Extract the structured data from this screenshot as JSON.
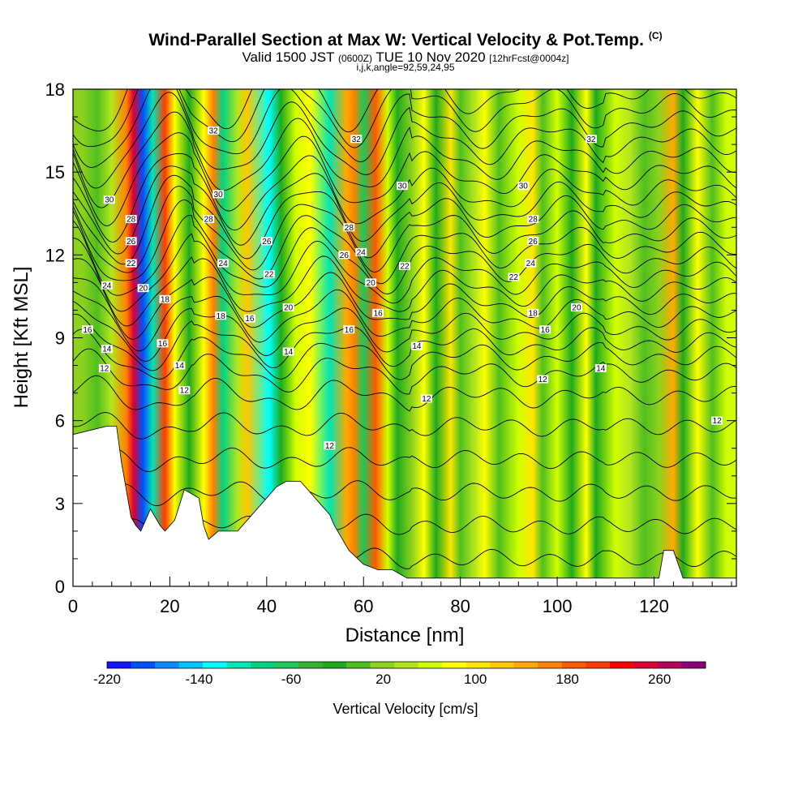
{
  "header": {
    "title": "Wind-Parallel Section at Max W: Vertical Velocity & Pot.Temp.",
    "copyright": "(C)",
    "valid_pre": "Valid 1500 JST",
    "valid_utc": "(0600Z)",
    "valid_mid": "TUE 10 Nov 2020",
    "valid_fcst": "[12hrFcst@0004z]",
    "indices": "i,j,k,angle=92,59,24,95"
  },
  "chart_data": {
    "type": "heatmap",
    "title": "Wind-Parallel Section at Max W: Vertical Velocity & Pot.Temp.",
    "xlabel": "Distance [nm]",
    "ylabel": "Height [Kft MSL]",
    "xlim": [
      0,
      137
    ],
    "ylim": [
      0,
      18
    ],
    "x_ticks": [
      0,
      20,
      40,
      60,
      80,
      100,
      120
    ],
    "y_ticks": [
      0,
      3,
      6,
      9,
      12,
      15,
      18
    ],
    "colorbar": {
      "title": "Vertical Velocity [cm/s]",
      "min": -220,
      "max": 280,
      "step": 20,
      "tick_values": [
        -220,
        -140,
        -60,
        20,
        100,
        180,
        260
      ],
      "tick_labels": [
        "-220",
        "-140",
        "-60",
        "20",
        "100",
        "180",
        "260"
      ],
      "colors": [
        "#1414ff",
        "#0050ff",
        "#0a8cff",
        "#00c3ff",
        "#00ffff",
        "#00e6b4",
        "#00d282",
        "#1ec85a",
        "#32b432",
        "#1eaa1e",
        "#50be1e",
        "#8cd21e",
        "#b4e61e",
        "#d2ff00",
        "#ffff00",
        "#ffe600",
        "#ffc800",
        "#ffaa00",
        "#ff8200",
        "#ff5a00",
        "#ff3c00",
        "#ff0000",
        "#dc0032",
        "#b4005a",
        "#8c0078"
      ]
    },
    "velocity_bands": [
      {
        "x": 2,
        "w": 0
      },
      {
        "x": 5,
        "w": -20
      },
      {
        "x": 8,
        "w": 20
      },
      {
        "x": 11,
        "w": 140
      },
      {
        "x": 12.5,
        "w": 220
      },
      {
        "x": 14.5,
        "w": -200
      },
      {
        "x": 16.5,
        "w": -120
      },
      {
        "x": 19,
        "w": 180
      },
      {
        "x": 21,
        "w": 60
      },
      {
        "x": 24,
        "w": -40
      },
      {
        "x": 27,
        "w": 60
      },
      {
        "x": 29,
        "w": 140
      },
      {
        "x": 31,
        "w": -100
      },
      {
        "x": 34,
        "w": 20
      },
      {
        "x": 36,
        "w": 100
      },
      {
        "x": 40.5,
        "w": -140
      },
      {
        "x": 43,
        "w": -40
      },
      {
        "x": 46,
        "w": 40
      },
      {
        "x": 49,
        "w": 60
      },
      {
        "x": 53,
        "w": -120
      },
      {
        "x": 56.5,
        "w": 120
      },
      {
        "x": 58,
        "w": 140
      },
      {
        "x": 60,
        "w": -80
      },
      {
        "x": 62.5,
        "w": 160
      },
      {
        "x": 65,
        "w": 40
      },
      {
        "x": 67,
        "w": -40
      },
      {
        "x": 70,
        "w": 0
      },
      {
        "x": 72.5,
        "w": 60
      },
      {
        "x": 75,
        "w": -40
      },
      {
        "x": 78,
        "w": 80
      },
      {
        "x": 80,
        "w": -20
      },
      {
        "x": 83,
        "w": 20
      },
      {
        "x": 85,
        "w": 60
      },
      {
        "x": 88,
        "w": -20
      },
      {
        "x": 92,
        "w": 40
      },
      {
        "x": 95,
        "w": 80
      },
      {
        "x": 97,
        "w": -20
      },
      {
        "x": 100,
        "w": 40
      },
      {
        "x": 103,
        "w": -40
      },
      {
        "x": 106,
        "w": 60
      },
      {
        "x": 108,
        "w": -40
      },
      {
        "x": 112,
        "w": 40
      },
      {
        "x": 115,
        "w": 20
      },
      {
        "x": 118,
        "w": -20
      },
      {
        "x": 121,
        "w": 0
      },
      {
        "x": 124,
        "w": 120
      },
      {
        "x": 126,
        "w": -40
      },
      {
        "x": 129,
        "w": 60
      },
      {
        "x": 132,
        "w": -20
      },
      {
        "x": 135,
        "w": 40
      }
    ],
    "terrain": [
      [
        0,
        5.5
      ],
      [
        7,
        5.8
      ],
      [
        9,
        5.8
      ],
      [
        10,
        4.5
      ],
      [
        11,
        3.5
      ],
      [
        12,
        2.5
      ],
      [
        13,
        2.2
      ],
      [
        14,
        2
      ],
      [
        15,
        2.4
      ],
      [
        16,
        2.8
      ],
      [
        17,
        2.5
      ],
      [
        18,
        2.2
      ],
      [
        19,
        2
      ],
      [
        21,
        2.4
      ],
      [
        23,
        3.5
      ],
      [
        26,
        3.2
      ],
      [
        27,
        2.2
      ],
      [
        28,
        1.7
      ],
      [
        30,
        2
      ],
      [
        34,
        2
      ],
      [
        36,
        2.4
      ],
      [
        39,
        3
      ],
      [
        42,
        3.6
      ],
      [
        44,
        3.8
      ],
      [
        47,
        3.8
      ],
      [
        49,
        3.4
      ],
      [
        51,
        3
      ],
      [
        53,
        2.6
      ],
      [
        54,
        2.2
      ],
      [
        57,
        1.3
      ],
      [
        60,
        0.8
      ],
      [
        63,
        0.6
      ],
      [
        66,
        0.6
      ],
      [
        69,
        0.3
      ],
      [
        75,
        0.3
      ],
      [
        85,
        0.3
      ],
      [
        100,
        0.3
      ],
      [
        110,
        0.3
      ],
      [
        121,
        0.3
      ],
      [
        122,
        1.3
      ],
      [
        124,
        1.3
      ],
      [
        126,
        0.3
      ],
      [
        137,
        0.3
      ]
    ],
    "isentropes": [
      {
        "base": 1.0,
        "label": "12"
      },
      {
        "base": 2.2,
        "label": "12"
      },
      {
        "base": 3.4,
        "label": "12"
      },
      {
        "base": 4.6,
        "label": "12"
      },
      {
        "base": 5.8,
        "label": "12"
      },
      {
        "base": 6.9,
        "label": "12"
      },
      {
        "base": 7.7,
        "label": "12"
      },
      {
        "base": 8.3,
        "label": "14"
      },
      {
        "base": 8.8,
        "label": "14"
      },
      {
        "base": 9.3,
        "label": "16"
      },
      {
        "base": 9.8,
        "label": "16"
      },
      {
        "base": 10.3,
        "label": "18"
      },
      {
        "base": 10.8,
        "label": "18"
      },
      {
        "base": 11.3,
        "label": "20"
      },
      {
        "base": 11.8,
        "label": "20"
      },
      {
        "base": 12.3,
        "label": "22"
      },
      {
        "base": 12.8,
        "label": "24"
      },
      {
        "base": 13.3,
        "label": "26"
      },
      {
        "base": 13.8,
        "label": "28"
      },
      {
        "base": 14.3,
        "label": "30"
      },
      {
        "base": 14.9,
        "label": "30"
      },
      {
        "base": 15.5,
        "label": "32"
      },
      {
        "base": 16.1,
        "label": "32"
      },
      {
        "base": 16.7,
        "label": "32"
      },
      {
        "base": 17.3,
        "label": "32"
      },
      {
        "base": 17.9,
        "label": "32"
      }
    ],
    "contour_labels": [
      {
        "x": 7.5,
        "y": 14.0,
        "text": "30"
      },
      {
        "x": 30,
        "y": 14.2,
        "text": "30"
      },
      {
        "x": 68,
        "y": 14.5,
        "text": "30"
      },
      {
        "x": 93,
        "y": 14.5,
        "text": "30"
      },
      {
        "x": 29,
        "y": 16.5,
        "text": "32"
      },
      {
        "x": 58.5,
        "y": 16.2,
        "text": "32"
      },
      {
        "x": 107,
        "y": 16.2,
        "text": "32"
      },
      {
        "x": 12,
        "y": 13.3,
        "text": "28"
      },
      {
        "x": 28,
        "y": 13.3,
        "text": "28"
      },
      {
        "x": 57,
        "y": 13.0,
        "text": "28"
      },
      {
        "x": 95,
        "y": 13.3,
        "text": "28"
      },
      {
        "x": 12,
        "y": 12.5,
        "text": "26"
      },
      {
        "x": 40,
        "y": 12.5,
        "text": "26"
      },
      {
        "x": 56,
        "y": 12.0,
        "text": "26"
      },
      {
        "x": 95,
        "y": 12.5,
        "text": "26"
      },
      {
        "x": 12,
        "y": 11.7,
        "text": "22"
      },
      {
        "x": 31,
        "y": 11.7,
        "text": "24"
      },
      {
        "x": 59.5,
        "y": 12.1,
        "text": "24"
      },
      {
        "x": 94.5,
        "y": 11.7,
        "text": "24"
      },
      {
        "x": 7,
        "y": 10.9,
        "text": "24"
      },
      {
        "x": 40.5,
        "y": 11.3,
        "text": "22"
      },
      {
        "x": 68.5,
        "y": 11.6,
        "text": "22"
      },
      {
        "x": 91,
        "y": 11.2,
        "text": "22"
      },
      {
        "x": 14.5,
        "y": 10.8,
        "text": "20"
      },
      {
        "x": 44.5,
        "y": 10.1,
        "text": "20"
      },
      {
        "x": 61.5,
        "y": 11.0,
        "text": "20"
      },
      {
        "x": 104,
        "y": 10.1,
        "text": "20"
      },
      {
        "x": 19,
        "y": 10.4,
        "text": "18"
      },
      {
        "x": 30.5,
        "y": 9.8,
        "text": "18"
      },
      {
        "x": 36.5,
        "y": 9.7,
        "text": "16"
      },
      {
        "x": 63,
        "y": 9.9,
        "text": "16"
      },
      {
        "x": 95,
        "y": 9.9,
        "text": "18"
      },
      {
        "x": 3,
        "y": 9.3,
        "text": "16"
      },
      {
        "x": 18.5,
        "y": 8.8,
        "text": "16"
      },
      {
        "x": 57,
        "y": 9.3,
        "text": "16"
      },
      {
        "x": 97.5,
        "y": 9.3,
        "text": "16"
      },
      {
        "x": 7,
        "y": 8.6,
        "text": "14"
      },
      {
        "x": 22,
        "y": 8.0,
        "text": "14"
      },
      {
        "x": 44.5,
        "y": 8.5,
        "text": "14"
      },
      {
        "x": 71,
        "y": 8.7,
        "text": "14"
      },
      {
        "x": 109,
        "y": 7.9,
        "text": "14"
      },
      {
        "x": 6.5,
        "y": 7.9,
        "text": "12"
      },
      {
        "x": 23,
        "y": 7.1,
        "text": "12"
      },
      {
        "x": 53,
        "y": 5.1,
        "text": "12"
      },
      {
        "x": 73,
        "y": 6.8,
        "text": "12"
      },
      {
        "x": 97,
        "y": 7.5,
        "text": "12"
      },
      {
        "x": 133,
        "y": 6.0,
        "text": "12"
      }
    ]
  }
}
